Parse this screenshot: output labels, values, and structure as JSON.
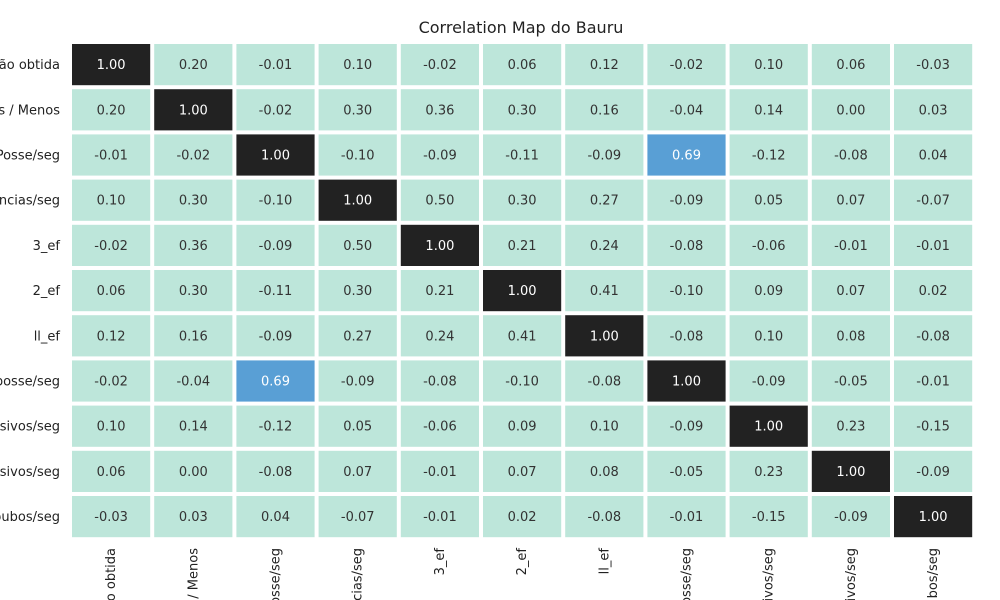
{
  "chart_data": {
    "type": "heatmap",
    "title": "Correlation Map do Bauru",
    "row_labels": [
      "ção obtida",
      "s / Menos",
      "Posse/seg",
      "encias/seg",
      "3_ef",
      "2_ef",
      "ll_ef",
      "posse/seg",
      "nsivos/seg",
      "nsivos/seg",
      "oubos/seg"
    ],
    "col_labels": [
      "o obtida",
      "/ Menos",
      "osse/seg",
      "cias/seg",
      "3_ef",
      "2_ef",
      "ll_ef",
      "osse/seg",
      "ivos/seg",
      "ivos/seg",
      "bos/seg"
    ],
    "values": [
      [
        1.0,
        0.2,
        -0.01,
        0.1,
        -0.02,
        0.06,
        0.12,
        -0.02,
        0.1,
        0.06,
        -0.03
      ],
      [
        0.2,
        1.0,
        -0.02,
        0.3,
        0.36,
        0.3,
        0.16,
        -0.04,
        0.14,
        0.0,
        0.03
      ],
      [
        -0.01,
        -0.02,
        1.0,
        -0.1,
        -0.09,
        -0.11,
        -0.09,
        0.69,
        -0.12,
        -0.08,
        0.04
      ],
      [
        0.1,
        0.3,
        -0.1,
        1.0,
        0.5,
        0.3,
        0.27,
        -0.09,
        0.05,
        0.07,
        -0.07
      ],
      [
        -0.02,
        0.36,
        -0.09,
        0.5,
        1.0,
        0.21,
        0.24,
        -0.08,
        -0.06,
        -0.01,
        -0.01
      ],
      [
        0.06,
        0.3,
        -0.11,
        0.3,
        0.21,
        1.0,
        0.41,
        -0.1,
        0.09,
        0.07,
        0.02
      ],
      [
        0.12,
        0.16,
        -0.09,
        0.27,
        0.24,
        0.41,
        1.0,
        -0.08,
        0.1,
        0.08,
        -0.08
      ],
      [
        -0.02,
        -0.04,
        0.69,
        -0.09,
        -0.08,
        -0.1,
        -0.08,
        1.0,
        -0.09,
        -0.05,
        -0.01
      ],
      [
        0.1,
        0.14,
        -0.12,
        0.05,
        -0.06,
        0.09,
        0.1,
        -0.09,
        1.0,
        0.23,
        -0.15
      ],
      [
        0.06,
        0.0,
        -0.08,
        0.07,
        -0.01,
        0.07,
        0.08,
        -0.05,
        0.23,
        1.0,
        -0.09
      ],
      [
        -0.03,
        0.03,
        0.04,
        -0.07,
        -0.01,
        0.02,
        -0.08,
        -0.01,
        -0.15,
        -0.09,
        1.0
      ]
    ],
    "colors": {
      "low": "#bde6da",
      "mid": "#3a88d4",
      "high": "#222222",
      "text_dark": "#333333",
      "text_light": "#ffffff",
      "background": "#ffffff"
    }
  }
}
